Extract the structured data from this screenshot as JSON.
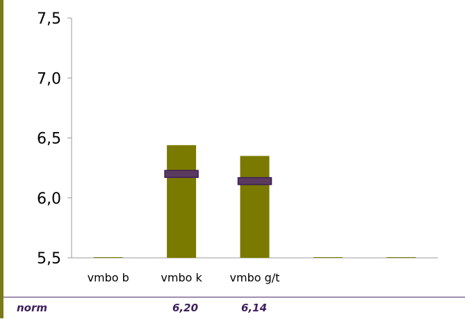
{
  "chart_data": {
    "type": "bar",
    "categories": [
      "vmbo b",
      "vmbo k",
      "vmbo g/t",
      "",
      ""
    ],
    "values": [
      5.5,
      6.44,
      6.35,
      5.5,
      5.5
    ],
    "norms": [
      null,
      6.2,
      6.14,
      null,
      null
    ],
    "ylim": [
      5.5,
      7.5
    ],
    "yticks": [
      "5,5",
      "6,0",
      "6,5",
      "7,0",
      "7,5"
    ],
    "ytick_values": [
      5.5,
      6.0,
      6.5,
      7.0,
      7.5
    ],
    "title": "",
    "xlabel": "",
    "ylabel": "",
    "grid": false
  },
  "norm_row": {
    "label": "norm",
    "values": [
      "",
      "6,20",
      "6,14",
      "",
      ""
    ]
  },
  "colors": {
    "bar": "#7a7a00",
    "norm_marker": "#5a3a5e",
    "norm_marker_border": "#3d1f5c",
    "axis": "#999999",
    "text": "#000000",
    "border": "#7a7a1a"
  }
}
